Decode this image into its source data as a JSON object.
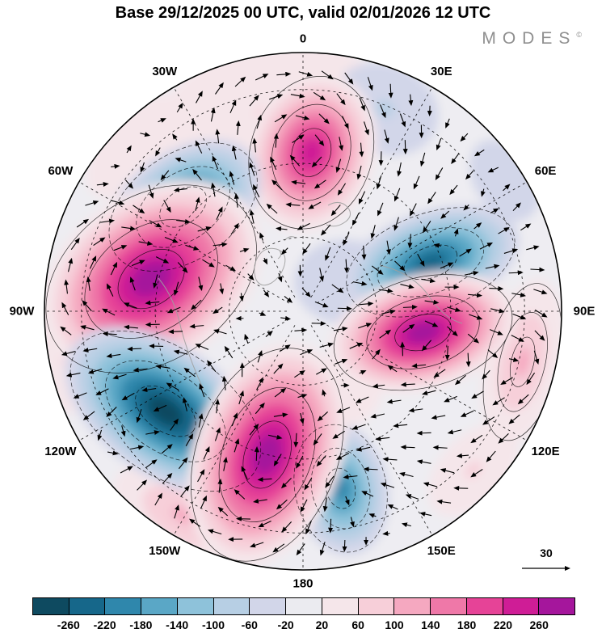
{
  "header": {
    "title": "Base 29/12/2025 00 UTC, valid 02/01/2026 12 UTC",
    "brand": "MODES",
    "brand_mark": "©"
  },
  "chart_data": {
    "type": "heatmap",
    "subtype": "polar-stereographic-anomaly-map-with-wind-vectors",
    "title": "Base 29/12/2025 00 UTC, valid 02/01/2026 12 UTC",
    "projection": {
      "name": "north-polar-stereographic",
      "center": "North Pole",
      "lat_min": 20,
      "lon_at_top": 0,
      "meridian_spacing_deg": 30
    },
    "latitude_circles_deg": [
      70,
      50,
      30
    ],
    "meridian_labels": [
      {
        "lon": 0,
        "label": "0"
      },
      {
        "lon": 30,
        "label": "30E"
      },
      {
        "lon": 60,
        "label": "60E"
      },
      {
        "lon": 90,
        "label": "90E"
      },
      {
        "lon": 120,
        "label": "120E"
      },
      {
        "lon": 150,
        "label": "150E"
      },
      {
        "lon": 180,
        "label": "180"
      },
      {
        "lon": -150,
        "label": "150W"
      },
      {
        "lon": -120,
        "label": "120W"
      },
      {
        "lon": -90,
        "label": "90W"
      },
      {
        "lon": -60,
        "label": "60W"
      },
      {
        "lon": -30,
        "label": "30W"
      }
    ],
    "colorbar": {
      "tick_labels": [
        "-260",
        "-220",
        "-180",
        "-140",
        "-100",
        "-60",
        "-20",
        "20",
        "60",
        "100",
        "140",
        "180",
        "220",
        "260"
      ],
      "colors": [
        "#0e4a60",
        "#16678a",
        "#2f87ac",
        "#5aa7c6",
        "#8ec2da",
        "#b7cfe4",
        "#d2d6e9",
        "#ebebf0",
        "#f5e6ea",
        "#f7cfd9",
        "#f5a8c0",
        "#ef78a8",
        "#e64397",
        "#cf1d96",
        "#a5169c"
      ]
    },
    "contour_levels": [
      -260,
      -220,
      -180,
      -140,
      -100,
      -60,
      -20,
      20,
      60,
      100,
      140,
      180,
      220,
      260
    ],
    "anomaly_centers": [
      {
        "lon": 3,
        "lat": 47,
        "value": 230,
        "radius_px": 88,
        "ex": 0.9,
        "ey": 1.15,
        "rot": 18
      },
      {
        "lon": -49,
        "lat": 47,
        "value": -240,
        "radius_px": 86,
        "ex": 1.25,
        "ey": 0.8,
        "rot": -35
      },
      {
        "lon": -78,
        "lat": 48,
        "value": 300,
        "radius_px": 125,
        "ex": 1.2,
        "ey": 0.85,
        "rot": -35
      },
      {
        "lon": 69,
        "lat": 53,
        "value": -240,
        "radius_px": 88,
        "ex": 1.3,
        "ey": 0.72,
        "rot": -20
      },
      {
        "lon": 100,
        "lat": 57,
        "value": 300,
        "radius_px": 95,
        "ex": 1.25,
        "ey": 0.75,
        "rot": -15
      },
      {
        "lon": -126,
        "lat": 44,
        "value": -300,
        "radius_px": 108,
        "ex": 1.3,
        "ey": 0.75,
        "rot": 35
      },
      {
        "lon": -166,
        "lat": 50,
        "value": 300,
        "radius_px": 115,
        "ex": 0.8,
        "ey": 1.25,
        "rot": 20
      },
      {
        "lon": 168,
        "lat": 41,
        "value": -190,
        "radius_px": 70,
        "ex": 0.85,
        "ey": 1.2,
        "rot": -12
      },
      {
        "lon": -8,
        "lat": 36,
        "value": 70,
        "radius_px": 115,
        "ex": 1.25,
        "ey": 0.75,
        "rot": -8
      },
      {
        "lon": 103,
        "lat": 29,
        "value": 140,
        "radius_px": 72,
        "ex": 1.45,
        "ey": 0.65,
        "rot": 103
      },
      {
        "lon": -150,
        "lat": 26,
        "value": 130,
        "radius_px": 72,
        "ex": 1.35,
        "ey": 0.7,
        "rot": 30
      },
      {
        "lon": -100,
        "lat": 24,
        "value": 80,
        "radius_px": 58,
        "ex": 1.3,
        "ey": 0.7,
        "rot": 80
      },
      {
        "lon": -45,
        "lat": 27,
        "value": 60,
        "radius_px": 62,
        "ex": 1.3,
        "ey": 0.7,
        "rot": -45
      },
      {
        "lon": 22,
        "lat": 31,
        "value": -70,
        "radius_px": 62,
        "ex": 1.1,
        "ey": 0.9,
        "rot": 22
      },
      {
        "lon": 55,
        "lat": 76,
        "value": -60,
        "radius_px": 58,
        "ex": 1.1,
        "ey": 0.9,
        "rot": 0
      },
      {
        "lon": 57,
        "lat": 25,
        "value": -60,
        "radius_px": 46,
        "ex": 1.2,
        "ey": 0.8,
        "rot": 57
      },
      {
        "lon": 152,
        "lat": 66,
        "value": 60,
        "radius_px": 46,
        "ex": 1.0,
        "ey": 1.0,
        "rot": 0
      },
      {
        "lon": 133,
        "lat": 27,
        "value": 70,
        "radius_px": 55,
        "ex": 1.25,
        "ey": 0.75,
        "rot": 133
      }
    ],
    "wind_arrows": {
      "color": "#000000",
      "grid_spacing_px": 27,
      "rotation_rule": "clockwise around positive anomalies, counterclockwise around negative"
    },
    "reference_vector": {
      "label": "30"
    }
  }
}
